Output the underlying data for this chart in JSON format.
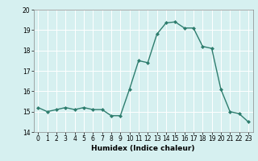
{
  "x": [
    0,
    1,
    2,
    3,
    4,
    5,
    6,
    7,
    8,
    9,
    10,
    11,
    12,
    13,
    14,
    15,
    16,
    17,
    18,
    19,
    20,
    21,
    22,
    23
  ],
  "y": [
    15.2,
    15.0,
    15.1,
    15.2,
    15.1,
    15.2,
    15.1,
    15.1,
    14.8,
    14.8,
    16.1,
    17.5,
    17.4,
    18.8,
    19.35,
    19.4,
    19.1,
    19.1,
    18.2,
    18.1,
    16.1,
    15.0,
    14.9,
    14.5
  ],
  "line_color": "#2e7d6e",
  "marker": "D",
  "marker_size": 2.0,
  "linewidth": 1.0,
  "xlabel": "Humidex (Indice chaleur)",
  "ylabel": "",
  "ylim": [
    14,
    20
  ],
  "xlim": [
    -0.5,
    23.5
  ],
  "yticks": [
    14,
    15,
    16,
    17,
    18,
    19,
    20
  ],
  "xticks": [
    0,
    1,
    2,
    3,
    4,
    5,
    6,
    7,
    8,
    9,
    10,
    11,
    12,
    13,
    14,
    15,
    16,
    17,
    18,
    19,
    20,
    21,
    22,
    23
  ],
  "xtick_labels": [
    "0",
    "1",
    "2",
    "3",
    "4",
    "5",
    "6",
    "7",
    "8",
    "9",
    "10",
    "11",
    "12",
    "13",
    "14",
    "15",
    "16",
    "17",
    "18",
    "19",
    "20",
    "21",
    "22",
    "23"
  ],
  "background_color": "#d6f0f0",
  "grid_color": "#ffffff",
  "tick_fontsize": 5.5,
  "xlabel_fontsize": 6.5
}
